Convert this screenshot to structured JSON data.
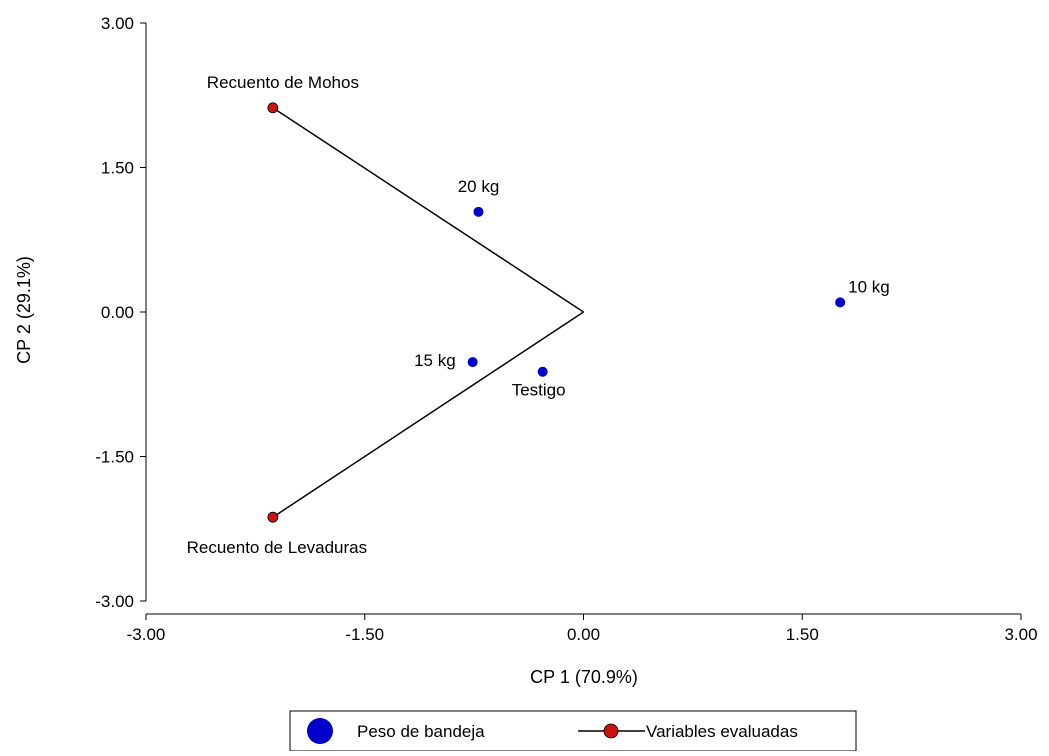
{
  "chart_data": {
    "type": "scatter",
    "title": "",
    "xlabel": "CP 1 (70.9%)",
    "ylabel": "CP 2 (29.1%)",
    "xlim": [
      -3.0,
      3.0
    ],
    "ylim": [
      -3.0,
      3.0
    ],
    "x_ticks": [
      "-3.00",
      "-1.50",
      "0.00",
      "1.50",
      "3.00"
    ],
    "y_ticks": [
      "3.00",
      "1.50",
      "0.00",
      "-1.50",
      "-3.00"
    ],
    "grid": false,
    "legend_position": "bottom",
    "series": [
      {
        "name": "Peso de bandeja",
        "color": "#0000cc",
        "points": [
          {
            "label": "20 kg",
            "x": -0.72,
            "y": 1.04
          },
          {
            "label": "10 kg",
            "x": 1.76,
            "y": 0.1
          },
          {
            "label": "15 kg",
            "x": -0.76,
            "y": -0.52
          },
          {
            "label": "Testigo",
            "x": -0.28,
            "y": -0.62
          }
        ]
      },
      {
        "name": "Variables evaluadas",
        "color": "#cc1111",
        "points": [
          {
            "label": "Recuento de Mohos",
            "x": -2.13,
            "y": 2.12
          },
          {
            "label": "Recuento de Levaduras",
            "x": -2.13,
            "y": -2.13
          }
        ]
      }
    ]
  }
}
